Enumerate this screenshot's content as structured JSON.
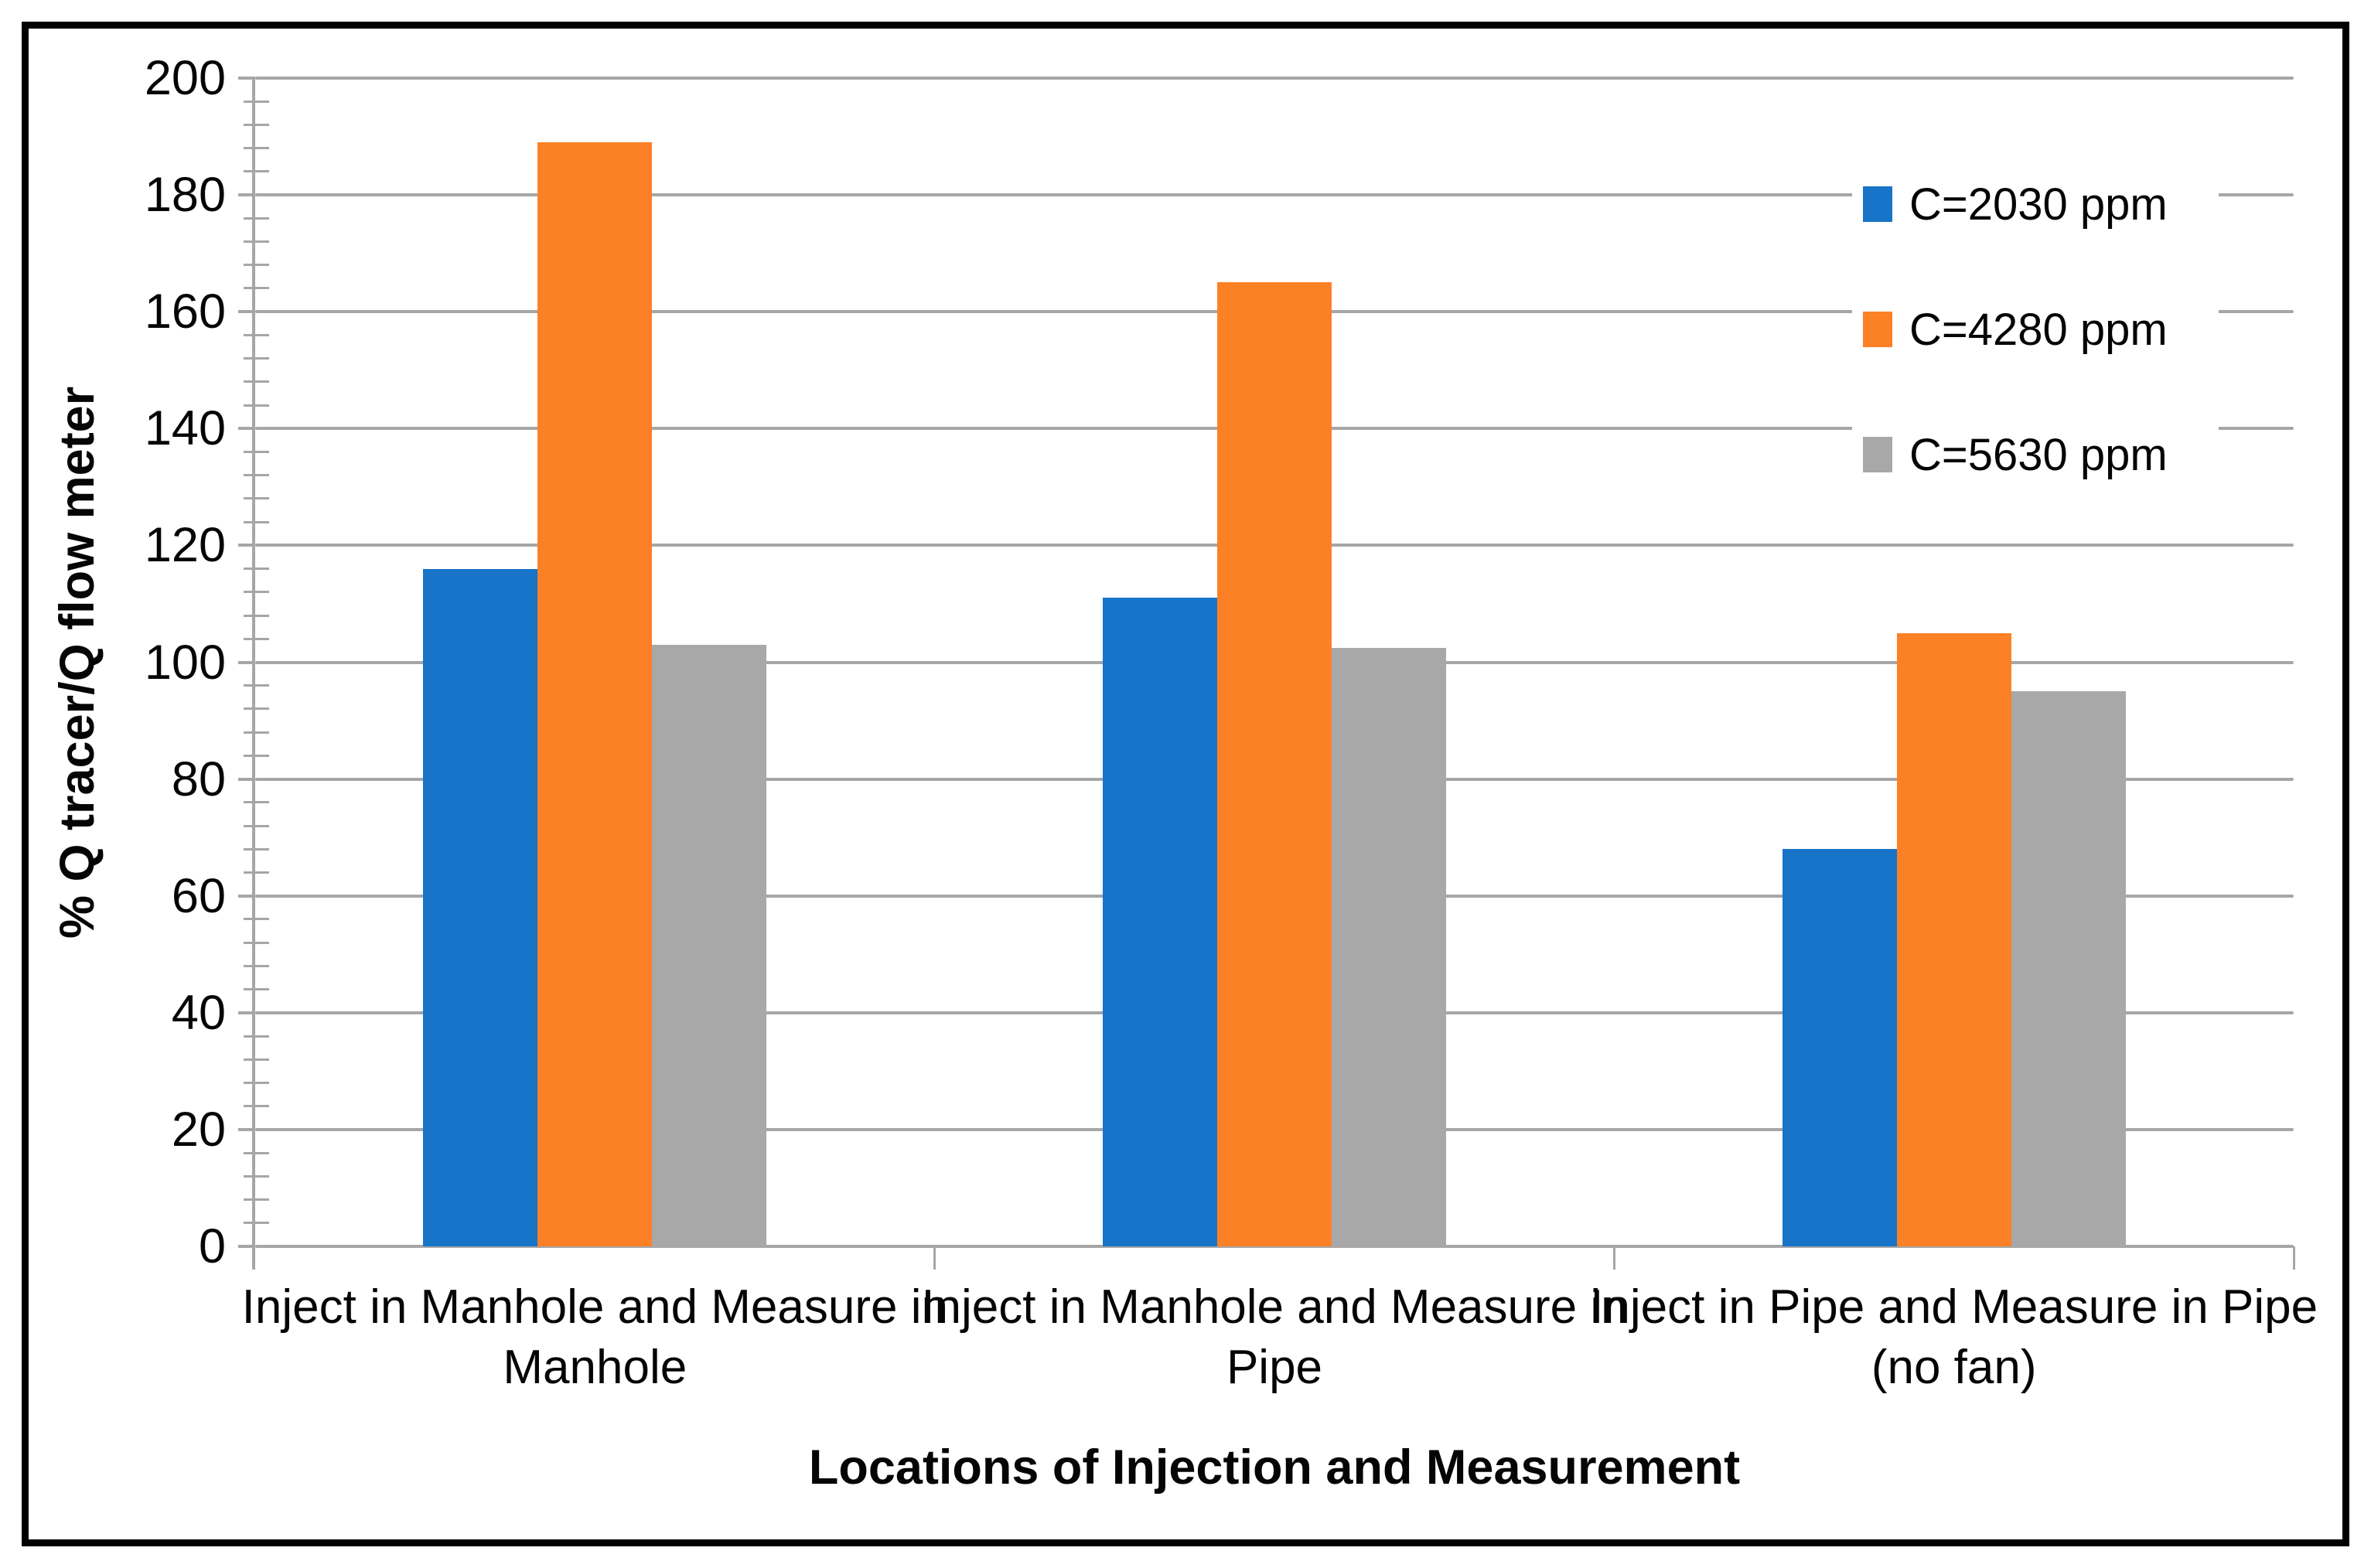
{
  "chart_data": {
    "type": "bar",
    "title": "",
    "categories": [
      "Inject in Manhole and Measure in Manhole",
      "Inject in Manhole and Measure in Pipe",
      "Inject in Pipe and Measure in Pipe (no fan)"
    ],
    "series": [
      {
        "name": "C=2030 ppm",
        "color": "#1774C8",
        "values": [
          116,
          111,
          68
        ]
      },
      {
        "name": "C=4280 ppm",
        "color": "#FC8126",
        "values": [
          189,
          165,
          105
        ]
      },
      {
        "name": "C=5630 ppm",
        "color": "#A8A8A8",
        "values": [
          103,
          102.5,
          95
        ]
      }
    ],
    "xlabel": "Locations of Injection and Measurement",
    "ylabel": "% Q tracer/Q flow meter",
    "ylim": [
      0,
      200
    ],
    "ytick_step": 20,
    "yminor_step": 4,
    "grid": true,
    "legend_position": "inside-top-right",
    "colors": {
      "gridline": "#A6A6A6",
      "axis": "#A6A6A6",
      "text": "#050505",
      "background": "#FFFFFF",
      "border": "#000000"
    }
  }
}
